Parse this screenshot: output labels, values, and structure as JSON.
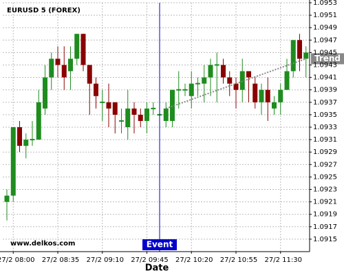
{
  "chart_data": {
    "type": "candlestick",
    "title": "EURUSD 5 (FOREX)",
    "watermark": "www.delkos.com",
    "x_label": "Date",
    "categories": [
      null,
      "27/2 08:00",
      null,
      null,
      null,
      null,
      null,
      null,
      "27/2 08:35",
      null,
      null,
      null,
      null,
      null,
      null,
      "27/2 09:10",
      null,
      null,
      null,
      null,
      null,
      null,
      "27/2 09:45",
      null,
      null,
      null,
      null,
      null,
      null,
      "27/2 10:20",
      null,
      null,
      null,
      null,
      null,
      null,
      "27/2 10:55",
      null,
      null,
      null,
      null,
      null,
      null,
      "27/2 11:30",
      null,
      null,
      null,
      null
    ],
    "open": [
      1.0921,
      1.0922,
      1.0933,
      1.093,
      1.0931,
      1.0931,
      1.0936,
      1.0941,
      1.0944,
      1.0943,
      1.0942,
      1.0944,
      1.0948,
      1.0943,
      1.094,
      1.0937,
      1.0937,
      1.0937,
      1.0934,
      1.0933,
      1.0936,
      1.0935,
      1.0934,
      1.0936,
      1.0935,
      1.0934,
      1.0934,
      1.0939,
      1.0939,
      1.0938,
      1.094,
      1.094,
      1.0941,
      1.0943,
      1.0943,
      1.0941,
      1.094,
      1.0939,
      1.0942,
      1.094,
      1.0937,
      1.0939,
      1.0936,
      1.0937,
      1.0939,
      1.0942,
      1.0947,
      1.0944
    ],
    "high": [
      1.0923,
      1.0933,
      1.0934,
      1.0932,
      1.0934,
      1.0939,
      1.0943,
      1.0945,
      1.0946,
      1.0946,
      1.0946,
      1.0948,
      1.0948,
      1.0943,
      1.0941,
      1.0939,
      1.094,
      1.0937,
      1.0936,
      1.0939,
      1.0937,
      1.0936,
      1.0937,
      1.0937,
      1.0936,
      1.0937,
      1.0939,
      1.0942,
      1.094,
      1.0942,
      1.0941,
      1.0943,
      1.0944,
      1.0945,
      1.0944,
      1.0942,
      1.0941,
      1.0944,
      1.0942,
      1.0941,
      1.094,
      1.0941,
      1.0938,
      1.094,
      1.0944,
      1.0947,
      1.0948,
      1.0946
    ],
    "low": [
      1.0918,
      1.0921,
      1.0929,
      1.0928,
      1.093,
      1.0931,
      1.0935,
      1.0939,
      1.0941,
      1.0939,
      1.0939,
      1.0943,
      1.0942,
      1.0935,
      1.0936,
      1.0934,
      1.0933,
      1.0932,
      1.0932,
      1.0931,
      1.0932,
      1.0933,
      1.0932,
      1.0935,
      1.0934,
      1.0933,
      1.0933,
      1.0936,
      1.0938,
      1.0936,
      1.0938,
      1.0937,
      1.0938,
      1.0937,
      1.094,
      1.0938,
      1.0936,
      1.0937,
      1.0937,
      1.0936,
      1.0935,
      1.0934,
      1.0935,
      1.0935,
      1.0939,
      1.0941,
      1.0942,
      1.0941
    ],
    "close": [
      1.0922,
      1.0933,
      1.093,
      1.0931,
      1.0931,
      1.0937,
      1.0941,
      1.0944,
      1.0943,
      1.0941,
      1.0944,
      1.0948,
      1.0943,
      1.094,
      1.0938,
      1.0937,
      1.0936,
      1.0935,
      1.0934,
      1.0936,
      1.0935,
      1.0934,
      1.0936,
      1.0936,
      1.0935,
      1.0936,
      1.0939,
      1.0939,
      1.0939,
      1.094,
      1.094,
      1.0941,
      1.0943,
      1.0943,
      1.0941,
      1.094,
      1.0939,
      1.0942,
      1.0941,
      1.0937,
      1.0939,
      1.0937,
      1.0937,
      1.0939,
      1.0942,
      1.0947,
      1.0944,
      1.0945
    ],
    "up_color": "#1e8c1e",
    "down_color": "#8b0000",
    "ylim": [
      1.0913,
      1.0953
    ],
    "yticks": [
      1.0915,
      1.0917,
      1.0919,
      1.0921,
      1.0923,
      1.0925,
      1.0927,
      1.0929,
      1.0931,
      1.0933,
      1.0935,
      1.0937,
      1.0939,
      1.0941,
      1.0943,
      1.0945,
      1.0947,
      1.0949,
      1.0951,
      1.0953
    ],
    "grid": true,
    "event": {
      "label": "Event",
      "x": 24,
      "color": "#0000cc"
    },
    "trend": {
      "label": "Trend",
      "from": [
        25,
        1.0936
      ],
      "to": [
        47,
        1.0944
      ],
      "color": "#888888"
    }
  }
}
